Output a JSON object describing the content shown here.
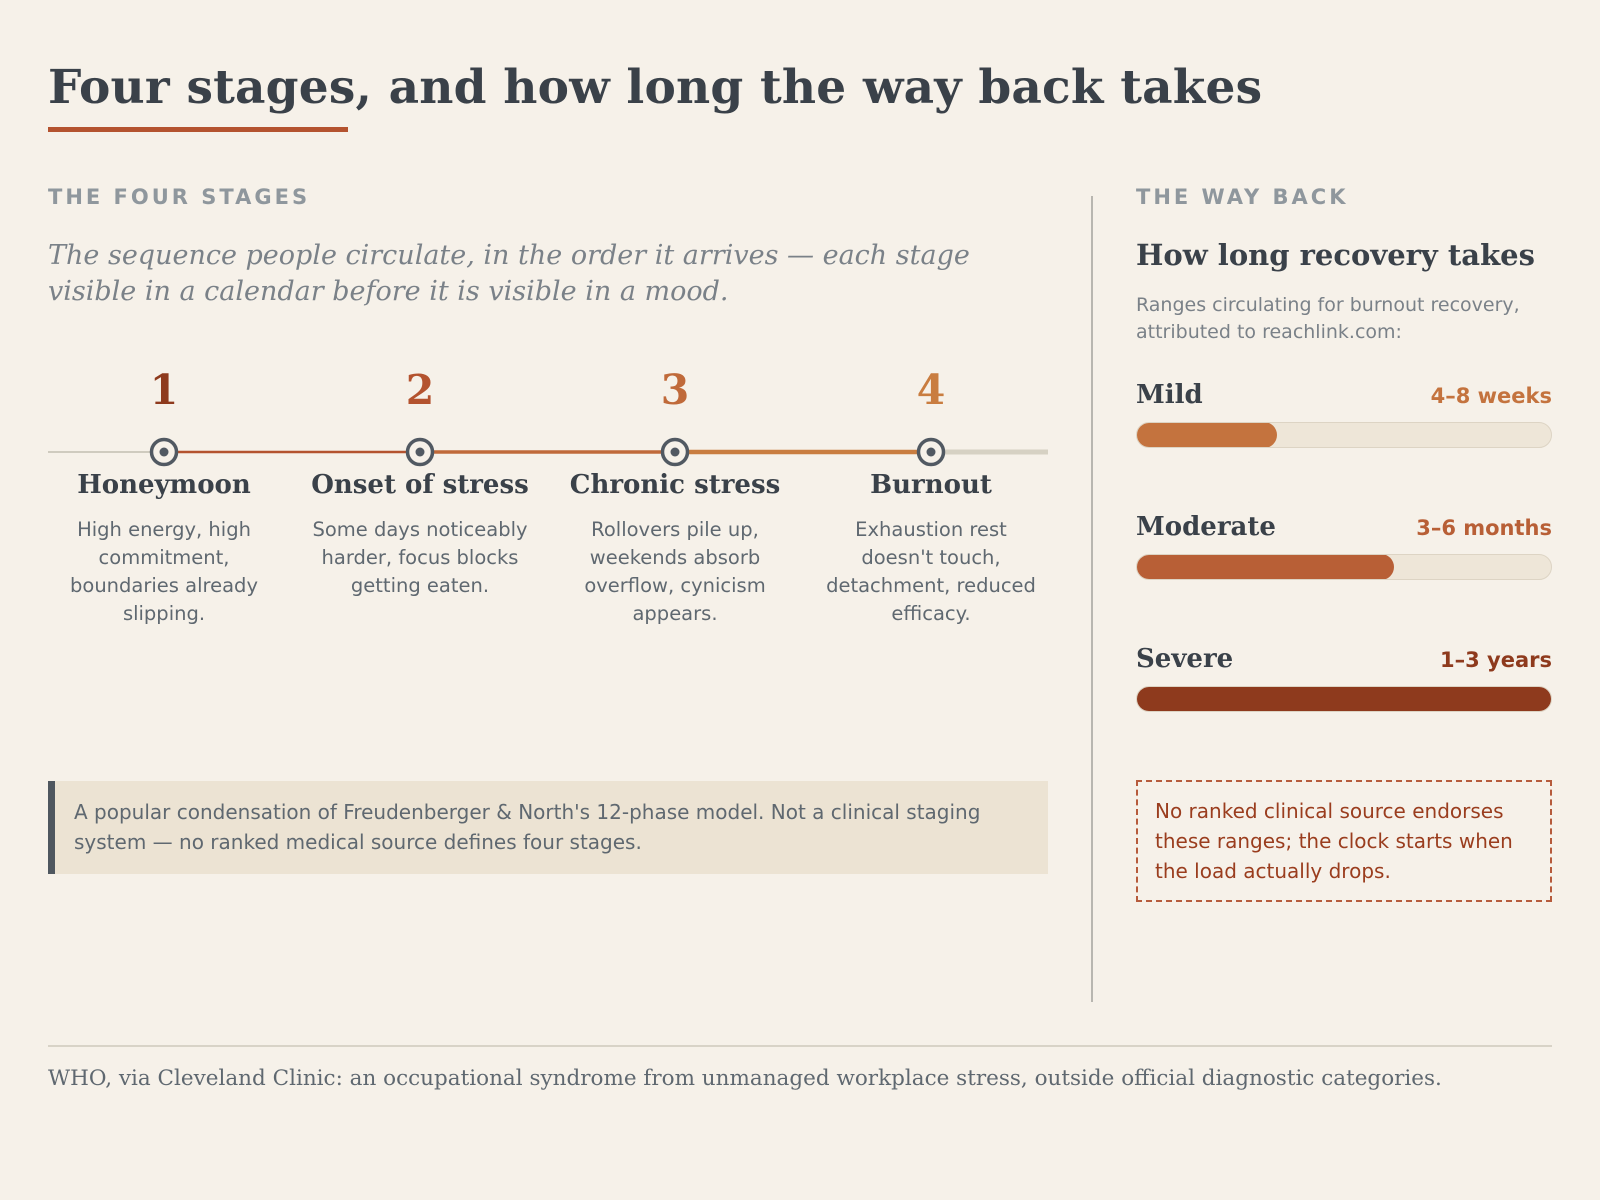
{
  "title": "Four stages, and how long the way back takes",
  "colors": {
    "background": "#f6f1e9",
    "accent": "#b4532f",
    "text": "#3a4149",
    "stage1": "#8e3a1d",
    "stage2": "#b4532f",
    "stage3": "#c06a3a",
    "stage4": "#c97d40",
    "mild": "#c4733e",
    "moderate": "#b85f36",
    "severe": "#8e3a1d"
  },
  "stages_section": {
    "eyebrow": "THE FOUR STAGES",
    "intro": "The sequence people circulate, in the order it arrives — each stage visible in a calendar before it is visible in a mood.",
    "stages": [
      {
        "number": "1",
        "name": "Honeymoon",
        "description": "High energy, high commitment, boundaries already slipping."
      },
      {
        "number": "2",
        "name": "Onset of stress",
        "description": "Some days noticeably harder, focus blocks getting eaten."
      },
      {
        "number": "3",
        "name": "Chronic stress",
        "description": "Rollovers pile up, weekends absorb overflow, cynicism appears."
      },
      {
        "number": "4",
        "name": "Burnout",
        "description": "Exhaustion rest doesn't touch, detachment, reduced efficacy."
      }
    ],
    "note": "A popular condensation of Freudenberger & North's 12-phase model. Not a clinical staging system — no ranked medical source defines four stages."
  },
  "way_back": {
    "eyebrow": "THE WAY BACK",
    "heading": "How long recovery takes",
    "subtitle": "Ranges circulating for burnout recovery, attributed to reachlink.com:",
    "ranges": [
      {
        "label": "Mild",
        "value": "4–8 weeks",
        "fraction": 0.34
      },
      {
        "label": "Moderate",
        "value": "3–6 months",
        "fraction": 0.62
      },
      {
        "label": "Severe",
        "value": "1–3 years",
        "fraction": 1.0
      }
    ],
    "caveat": "No ranked clinical source endorses these ranges; the clock starts when the load actually drops."
  },
  "footer": "WHO, via Cleveland Clinic: an occupational syndrome from unmanaged workplace stress, outside official diagnostic categories."
}
